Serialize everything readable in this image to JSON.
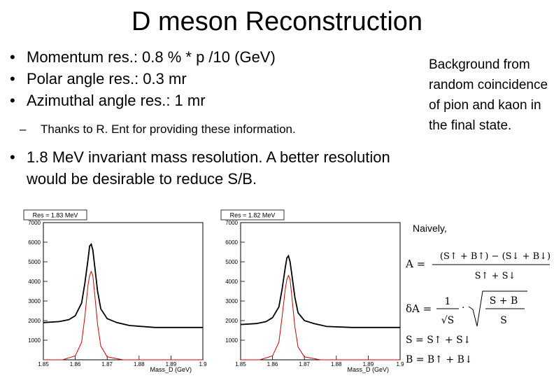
{
  "slide": {
    "title": "D meson Reconstruction",
    "bullets": [
      "Momentum res.: 0.8 % * p /10 (GeV)",
      "Polar angle res.:  0.3 mr",
      "Azimuthal angle res.:  1 mr"
    ],
    "sub_bullet": "Thanks to R. Ent for providing these information.",
    "bullet_last": "1.8 MeV invariant mass resolution. A better resolution would be desirable to reduce S/B.",
    "side_note": "Background from random coincidence of pion and kaon in the final state.",
    "naively": "Naively,",
    "bullet_symbol": "•",
    "dash_symbol": "–"
  },
  "plots": {
    "left": {
      "res_label": "Res = 1.83 MeV",
      "xlabel": "Mass_D (GeV)"
    },
    "right": {
      "res_label": "Res = 1.82 MeV",
      "xlabel": "Mass_D (GeV)"
    }
  },
  "equations": {
    "A_lhs": "A =",
    "A_num": "(S↑ + B↑) − (S↓ + B↓)",
    "A_den": "S↑ + S↓",
    "dA_lhs": "δA =",
    "dA_num": "1",
    "dA_den": "√S",
    "dA_rnum": "S + B",
    "dA_rden": "S",
    "S_eq": "S = S↑ + S↓",
    "B_eq": "B = B↑ + B↓"
  },
  "chart_data": [
    {
      "type": "line",
      "title": "Res = 1.83 MeV",
      "xlabel": "Mass_D (GeV)",
      "ylabel": "",
      "xlim": [
        1.85,
        1.9
      ],
      "ylim": [
        0,
        7000
      ],
      "x_ticks": [
        "1.85",
        "1.86",
        "1.87",
        "1.88",
        "1.89",
        "1.9"
      ],
      "y_ticks": [
        "1000",
        "2000",
        "3000",
        "4000",
        "5000",
        "6000",
        "7000"
      ],
      "series": [
        {
          "color": "#000000",
          "x": [
            1.85,
            1.855,
            1.858,
            1.86,
            1.862,
            1.863,
            1.864,
            1.8645,
            1.865,
            1.8655,
            1.866,
            1.867,
            1.868,
            1.87,
            1.873,
            1.877,
            1.885,
            1.9
          ],
          "y": [
            1900,
            1950,
            2050,
            2250,
            2900,
            3900,
            5100,
            5800,
            5900,
            5600,
            4900,
            3500,
            2600,
            2100,
            1900,
            1750,
            1650,
            1650
          ]
        },
        {
          "color": "#cc0000",
          "x": [
            1.85,
            1.856,
            1.86,
            1.862,
            1.863,
            1.864,
            1.8645,
            1.865,
            1.8655,
            1.866,
            1.867,
            1.868,
            1.87,
            1.875,
            1.9
          ],
          "y": [
            0,
            0,
            200,
            900,
            2200,
            3800,
            4300,
            4500,
            4300,
            3500,
            1800,
            700,
            150,
            0,
            0
          ]
        }
      ]
    },
    {
      "type": "line",
      "title": "Res = 1.82 MeV",
      "xlabel": "Mass_D (GeV)",
      "ylabel": "",
      "xlim": [
        1.85,
        1.9
      ],
      "ylim": [
        0,
        7000
      ],
      "x_ticks": [
        "1.85",
        "1.86",
        "1.87",
        "1.88",
        "1.89",
        "1.9"
      ],
      "y_ticks": [
        "1000",
        "2000",
        "3000",
        "4000",
        "5000",
        "6000",
        "7000"
      ],
      "series": [
        {
          "color": "#000000",
          "x": [
            1.85,
            1.855,
            1.858,
            1.86,
            1.862,
            1.863,
            1.864,
            1.8645,
            1.865,
            1.8655,
            1.866,
            1.867,
            1.868,
            1.87,
            1.873,
            1.877,
            1.885,
            1.9
          ],
          "y": [
            1800,
            1850,
            1950,
            2150,
            2700,
            3600,
            4700,
            5200,
            5300,
            5000,
            4400,
            3200,
            2400,
            2000,
            1850,
            1700,
            1650,
            1650
          ]
        },
        {
          "color": "#cc0000",
          "x": [
            1.85,
            1.856,
            1.86,
            1.862,
            1.863,
            1.864,
            1.8645,
            1.865,
            1.8655,
            1.866,
            1.867,
            1.868,
            1.87,
            1.875,
            1.9
          ],
          "y": [
            0,
            0,
            200,
            900,
            2200,
            3600,
            4100,
            4300,
            4100,
            3300,
            1700,
            650,
            150,
            0,
            0
          ]
        }
      ]
    }
  ]
}
